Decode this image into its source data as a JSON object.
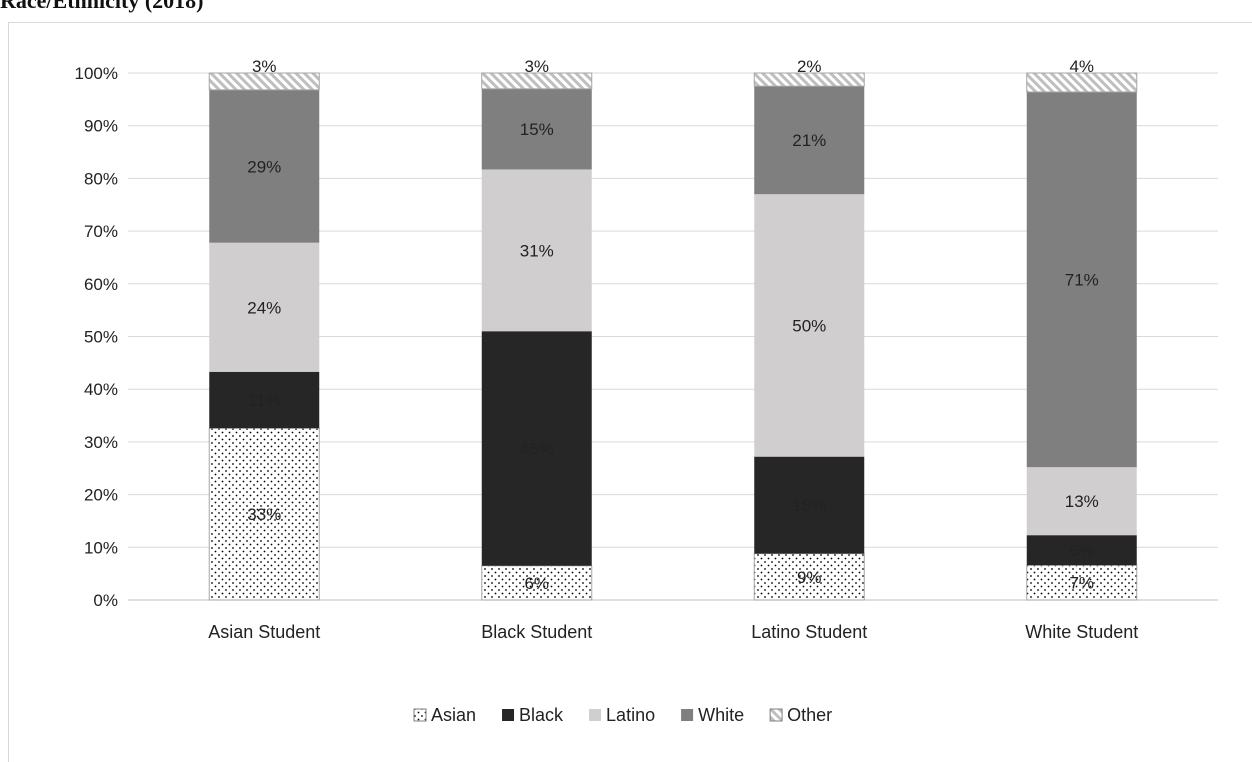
{
  "caption": "Race/Ethnicity (2018)",
  "chart_data": {
    "type": "bar",
    "stacked": true,
    "title": "",
    "xlabel": "",
    "ylabel": "",
    "ylim": [
      0,
      100
    ],
    "yticks": [
      "0%",
      "10%",
      "20%",
      "30%",
      "40%",
      "50%",
      "60%",
      "70%",
      "80%",
      "90%",
      "100%"
    ],
    "grid": true,
    "legend_position": "bottom",
    "categories": [
      "Asian Student",
      "Black Student",
      "Latino Student",
      "White Student"
    ],
    "series": [
      {
        "name": "Asian",
        "pattern": "dots",
        "color": "#ffffff",
        "values": [
          32.6,
          6.5,
          8.8,
          6.6
        ],
        "labels": [
          "33%",
          "6%",
          "9%",
          "7%"
        ]
      },
      {
        "name": "Black",
        "pattern": "solid",
        "color": "#262626",
        "values": [
          10.7,
          44.5,
          18.4,
          5.7
        ],
        "labels": [
          "11%",
          "45%",
          "18%",
          "6%"
        ]
      },
      {
        "name": "Latino",
        "pattern": "solid",
        "color": "#d0cece",
        "values": [
          24.5,
          30.7,
          49.8,
          12.9
        ],
        "labels": [
          "24%",
          "31%",
          "50%",
          "13%"
        ]
      },
      {
        "name": "White",
        "pattern": "solid",
        "color": "#7f7f7f",
        "values": [
          29.0,
          15.3,
          20.5,
          71.2
        ],
        "labels": [
          "29%",
          "15%",
          "21%",
          "71%"
        ]
      },
      {
        "name": "Other",
        "pattern": "hatch",
        "color": "#bfbfbf",
        "values": [
          3.2,
          3.0,
          2.5,
          3.6
        ],
        "labels": [
          "3%",
          "3%",
          "2%",
          "4%"
        ]
      }
    ]
  }
}
